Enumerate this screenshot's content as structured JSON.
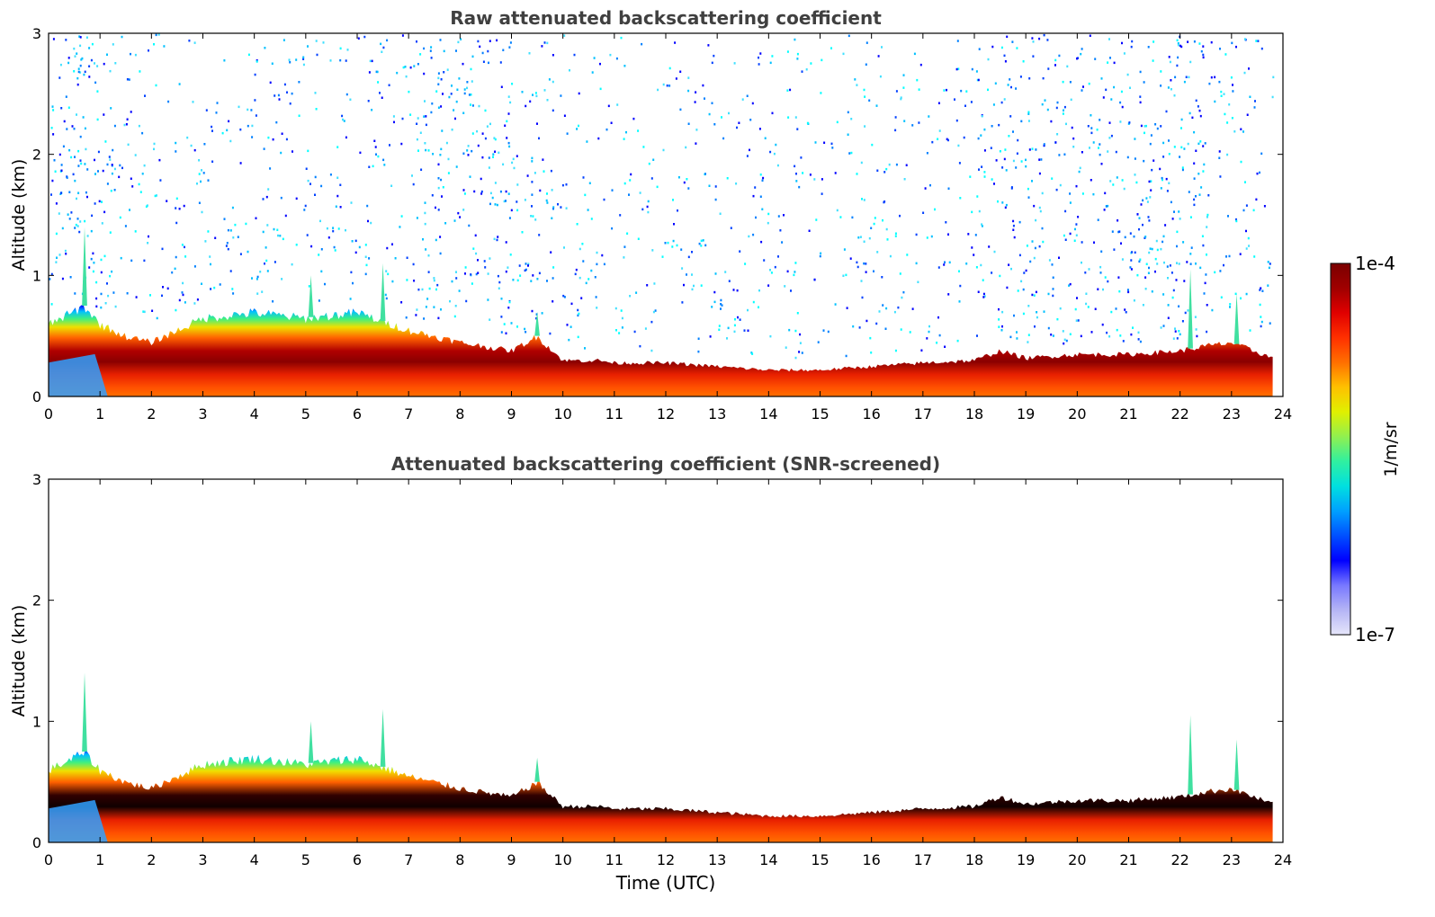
{
  "chart_data": [
    {
      "type": "heatmap",
      "title": "Raw attenuated backscattering coefficient",
      "xlabel": "",
      "ylabel": "Altitude (km)",
      "xlim": [
        0,
        24
      ],
      "ylim": [
        0,
        3
      ],
      "x_ticks": [
        "0",
        "1",
        "2",
        "3",
        "4",
        "5",
        "6",
        "7",
        "8",
        "9",
        "10",
        "11",
        "12",
        "13",
        "14",
        "15",
        "16",
        "17",
        "18",
        "19",
        "20",
        "21",
        "22",
        "23",
        "24"
      ],
      "y_ticks": [
        "0",
        "1",
        "2",
        "3"
      ],
      "data_end_hour": 23.8,
      "boundary_layer_top_km": {
        "x": [
          0,
          0.7,
          1,
          1.5,
          2,
          3,
          4,
          5,
          6,
          7,
          8,
          9,
          9.5,
          10,
          10.7,
          11,
          12,
          13,
          14,
          15,
          16,
          17,
          18,
          18.5,
          19,
          20,
          21,
          22,
          22.5,
          23,
          23.8
        ],
        "y": [
          0.6,
          0.75,
          0.6,
          0.5,
          0.45,
          0.65,
          0.7,
          0.65,
          0.7,
          0.55,
          0.45,
          0.38,
          0.5,
          0.3,
          0.3,
          0.28,
          0.28,
          0.25,
          0.22,
          0.22,
          0.25,
          0.28,
          0.3,
          0.38,
          0.32,
          0.35,
          0.35,
          0.38,
          0.42,
          0.45,
          0.32
        ]
      },
      "plume_spikes_km": [
        {
          "x": 0.7,
          "top": 1.4
        },
        {
          "x": 5.1,
          "top": 1.0
        },
        {
          "x": 6.5,
          "top": 1.1
        },
        {
          "x": 9.5,
          "top": 0.7
        },
        {
          "x": 22.2,
          "top": 1.05
        },
        {
          "x": 23.1,
          "top": 0.85
        }
      ],
      "noise_present": true
    },
    {
      "type": "heatmap",
      "title": "Attenuated backscattering coefficient (SNR-screened)",
      "xlabel": "Time (UTC)",
      "ylabel": "Altitude (km)",
      "xlim": [
        0,
        24
      ],
      "ylim": [
        0,
        3
      ],
      "x_ticks": [
        "0",
        "1",
        "2",
        "3",
        "4",
        "5",
        "6",
        "7",
        "8",
        "9",
        "10",
        "11",
        "12",
        "13",
        "14",
        "15",
        "16",
        "17",
        "18",
        "19",
        "20",
        "21",
        "22",
        "23",
        "24"
      ],
      "y_ticks": [
        "0",
        "1",
        "2",
        "3"
      ],
      "data_end_hour": 23.8,
      "noise_present": false
    }
  ],
  "colorbar": {
    "label": "1/m/sr",
    "max_label": "1e-4",
    "min_label": "1e-7",
    "colors": [
      "#e6e6fa",
      "#b4b4f5",
      "#7878ff",
      "#0000ff",
      "#0050ff",
      "#00a0ff",
      "#00e0e0",
      "#30f0a0",
      "#90f050",
      "#e0f000",
      "#ffc000",
      "#ff7000",
      "#ff3000",
      "#e00000",
      "#a00000",
      "#7a0000"
    ]
  }
}
